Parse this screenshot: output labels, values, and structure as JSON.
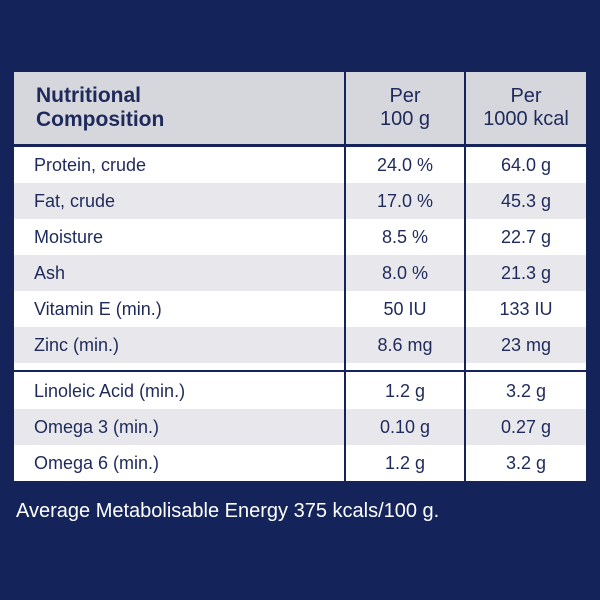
{
  "table": {
    "title_line1": "Nutritional",
    "title_line2": "Composition",
    "col1_line1": "Per",
    "col1_line2": "100 g",
    "col2_line1": "Per",
    "col2_line2": "1000 kcal",
    "rows": [
      {
        "name": "Protein, crude",
        "per100g": "24.0 %",
        "per1000kcal": "64.0 g"
      },
      {
        "name": "Fat, crude",
        "per100g": "17.0 %",
        "per1000kcal": "45.3 g"
      },
      {
        "name": "Moisture",
        "per100g": "8.5 %",
        "per1000kcal": "22.7 g"
      },
      {
        "name": "Ash",
        "per100g": "8.0 %",
        "per1000kcal": "21.3 g"
      },
      {
        "name": "Vitamin E (min.)",
        "per100g": "50 IU",
        "per1000kcal": "133 IU"
      },
      {
        "name": "Zinc (min.)",
        "per100g": "8.6 mg",
        "per1000kcal": "23 mg"
      },
      {
        "name": "Linoleic Acid (min.)",
        "per100g": "1.2 g",
        "per1000kcal": "3.2 g"
      },
      {
        "name": "Omega 3 (min.)",
        "per100g": "0.10 g",
        "per1000kcal": "0.27 g"
      },
      {
        "name": "Omega 6 (min.)",
        "per100g": "1.2 g",
        "per1000kcal": "3.2 g"
      }
    ]
  },
  "footer": "Average Metabolisable Energy 375 kcals/100 g.",
  "colors": {
    "background": "#14245a",
    "header": "#d6d7dc",
    "shade": "#e8e8ec",
    "text": "#1f2a5c"
  }
}
